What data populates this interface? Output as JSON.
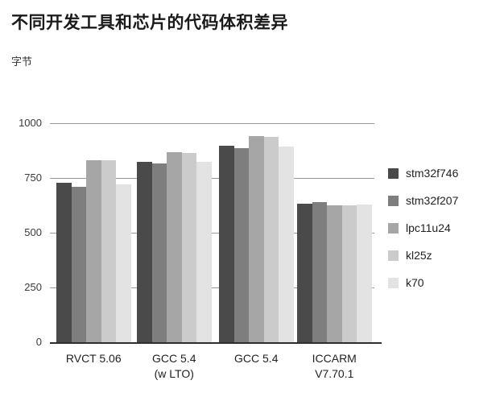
{
  "title": "不同开发工具和芯片的代码体积差异",
  "y_unit_label": "字节",
  "chart_data": {
    "type": "bar",
    "title": "不同开发工具和芯片的代码体积差异",
    "ylabel": "字节",
    "xlabel": "",
    "ylim": [
      0,
      1000
    ],
    "yticks": [
      0,
      250,
      500,
      750,
      1000
    ],
    "grid": true,
    "legend_position": "right",
    "categories": [
      "RVCT 5.06",
      "GCC 5.4 (w LTO)",
      "GCC 5.4",
      "ICCARM V7.70.1"
    ],
    "category_label_lines": [
      [
        "RVCT 5.06"
      ],
      [
        "GCC 5.4",
        "(w LTO)"
      ],
      [
        "GCC 5.4"
      ],
      [
        "ICCARM",
        "V7.70.1"
      ]
    ],
    "series": [
      {
        "name": "stm32f746",
        "color": "#4a4a4a",
        "values": [
          727,
          824,
          897,
          632
        ]
      },
      {
        "name": "stm32f207",
        "color": "#7e7e7e",
        "values": [
          711,
          818,
          886,
          640
        ]
      },
      {
        "name": "lpc11u24",
        "color": "#a6a6a6",
        "values": [
          831,
          866,
          940,
          626
        ]
      },
      {
        "name": "kl25z",
        "color": "#cbcbcb",
        "values": [
          832,
          864,
          937,
          625
        ]
      },
      {
        "name": "k70",
        "color": "#e3e3e3",
        "values": [
          722,
          822,
          893,
          630
        ]
      }
    ]
  }
}
